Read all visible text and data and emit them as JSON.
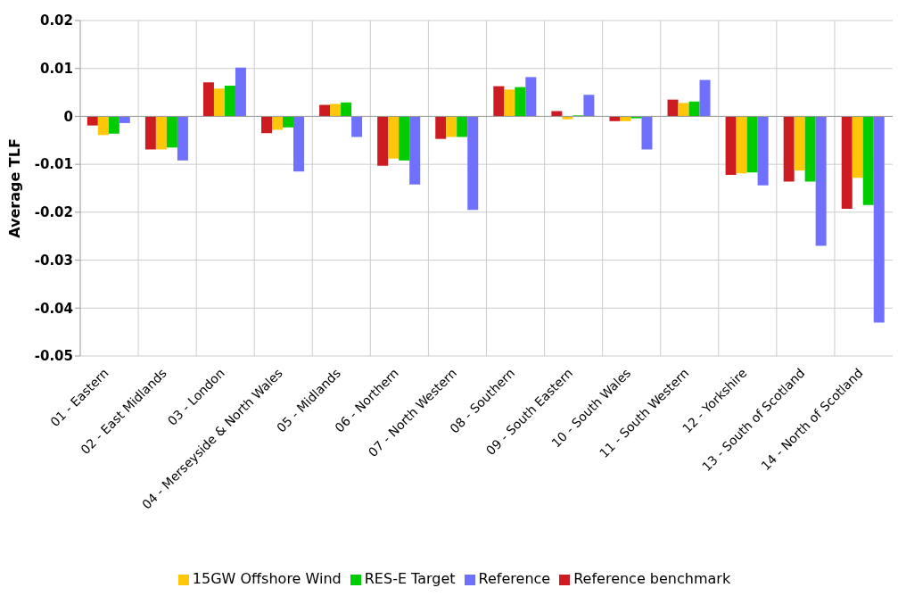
{
  "chart_data": {
    "type": "bar",
    "ylabel": "Average TLF",
    "categories": [
      "01 - Eastern",
      "02 - East Midlands",
      "03 - London",
      "04 - Merseyside & North Wales",
      "05 - Midlands",
      "06 - Northern",
      "07 - North Western",
      "08 - Southern",
      "09 - South Eastern",
      "10 - South Wales",
      "11 - South Western",
      "12 - Yorkshire",
      "13 - South of Scotland",
      "14 - North of Scotland"
    ],
    "series": [
      {
        "name": "Reference benchmark",
        "color": "#cc1c22",
        "values": [
          -0.0019,
          -0.0069,
          0.0071,
          -0.0035,
          0.0024,
          -0.0103,
          -0.0047,
          0.0063,
          0.0011,
          -0.001,
          0.0035,
          -0.0122,
          -0.0136,
          -0.0193
        ]
      },
      {
        "name": "15GW Offshore Wind",
        "color": "#ffc60a",
        "values": [
          -0.0039,
          -0.0069,
          0.0058,
          -0.0028,
          0.0026,
          -0.0088,
          -0.0043,
          0.0056,
          -0.0006,
          -0.001,
          0.0028,
          -0.0119,
          -0.0113,
          -0.0128
        ]
      },
      {
        "name": "RES-E Target",
        "color": "#00cc00",
        "values": [
          -0.0036,
          -0.0065,
          0.0064,
          -0.0023,
          0.0029,
          -0.0092,
          -0.0043,
          0.0061,
          0.0002,
          -0.0004,
          0.0031,
          -0.0117,
          -0.0136,
          -0.0185
        ]
      },
      {
        "name": "Reference",
        "color": "#7070ff",
        "values": [
          -0.0014,
          -0.0092,
          0.0102,
          -0.0115,
          -0.0043,
          -0.0142,
          -0.0195,
          0.0082,
          0.0045,
          -0.0069,
          0.0076,
          -0.0144,
          -0.027,
          -0.043
        ]
      }
    ],
    "ylim": [
      -0.05,
      0.02
    ],
    "yticks": [
      {
        "value": -0.05,
        "label": "-0.05"
      },
      {
        "value": -0.04,
        "label": "-0.04"
      },
      {
        "value": -0.03,
        "label": "-0.03"
      },
      {
        "value": -0.02,
        "label": "-0.02"
      },
      {
        "value": -0.01,
        "label": "-0.01"
      },
      0,
      {
        "value": 0.01,
        "label": "0.01"
      },
      {
        "value": 0.02,
        "label": "0.02"
      }
    ],
    "grid": true,
    "legend": "bottom"
  }
}
